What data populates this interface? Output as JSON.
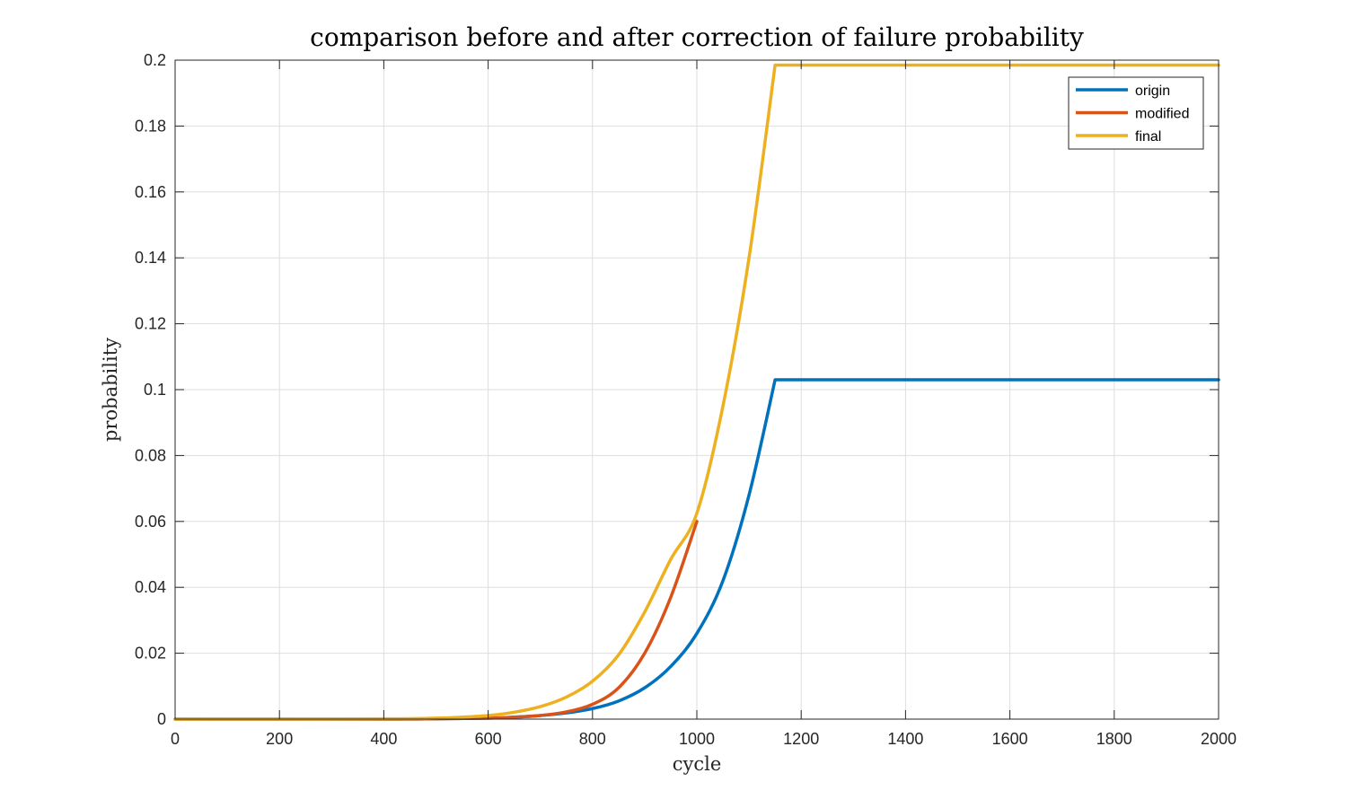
{
  "chart_data": {
    "type": "line",
    "title": "comparison before and after correction of failure probability",
    "xlabel": "cycle",
    "ylabel": "probability",
    "xlim": [
      0,
      2000
    ],
    "ylim": [
      0,
      0.2
    ],
    "xticks": [
      0,
      200,
      400,
      600,
      800,
      1000,
      1200,
      1400,
      1600,
      1800,
      2000
    ],
    "yticks": [
      0,
      0.02,
      0.04,
      0.06,
      0.08,
      0.1,
      0.12,
      0.14,
      0.16,
      0.18,
      0.2
    ],
    "xtick_labels": [
      "0",
      "200",
      "400",
      "600",
      "800",
      "1000",
      "1200",
      "1400",
      "1600",
      "1800",
      "2000"
    ],
    "ytick_labels": [
      "0",
      "0.02",
      "0.04",
      "0.06",
      "0.08",
      "0.1",
      "0.12",
      "0.14",
      "0.16",
      "0.18",
      "0.2"
    ],
    "grid": true,
    "legend_position": "top-right",
    "series": [
      {
        "name": "origin",
        "color": "#0072BD",
        "x": [
          0,
          400,
          500,
          600,
          650,
          700,
          750,
          800,
          850,
          900,
          950,
          1000,
          1050,
          1100,
          1150,
          1200,
          1400,
          1600,
          1800,
          2000
        ],
        "y": [
          0,
          0,
          0.0001,
          0.0003,
          0.0006,
          0.0011,
          0.0019,
          0.0032,
          0.0055,
          0.0095,
          0.016,
          0.026,
          0.042,
          0.068,
          0.103,
          0.103,
          0.103,
          0.103,
          0.103,
          0.103
        ]
      },
      {
        "name": "modified",
        "color": "#D95319",
        "x": [
          0,
          400,
          500,
          600,
          650,
          700,
          750,
          800,
          850,
          900,
          950,
          1000
        ],
        "y": [
          0,
          0,
          0.0001,
          0.0003,
          0.0006,
          0.0011,
          0.0022,
          0.0045,
          0.0095,
          0.02,
          0.037,
          0.06
        ]
      },
      {
        "name": "final",
        "color": "#EDB120",
        "x": [
          0,
          400,
          500,
          550,
          600,
          650,
          700,
          750,
          800,
          850,
          900,
          950,
          1000,
          1050,
          1100,
          1150,
          1200,
          1400,
          1600,
          1800,
          2000
        ],
        "y": [
          0,
          0.0001,
          0.0003,
          0.0006,
          0.0011,
          0.0021,
          0.0038,
          0.0067,
          0.0115,
          0.0195,
          0.0325,
          0.0485,
          0.0625,
          0.095,
          0.14,
          0.1985,
          0.1985,
          0.1985,
          0.1985,
          0.1985,
          0.1985
        ]
      }
    ]
  }
}
